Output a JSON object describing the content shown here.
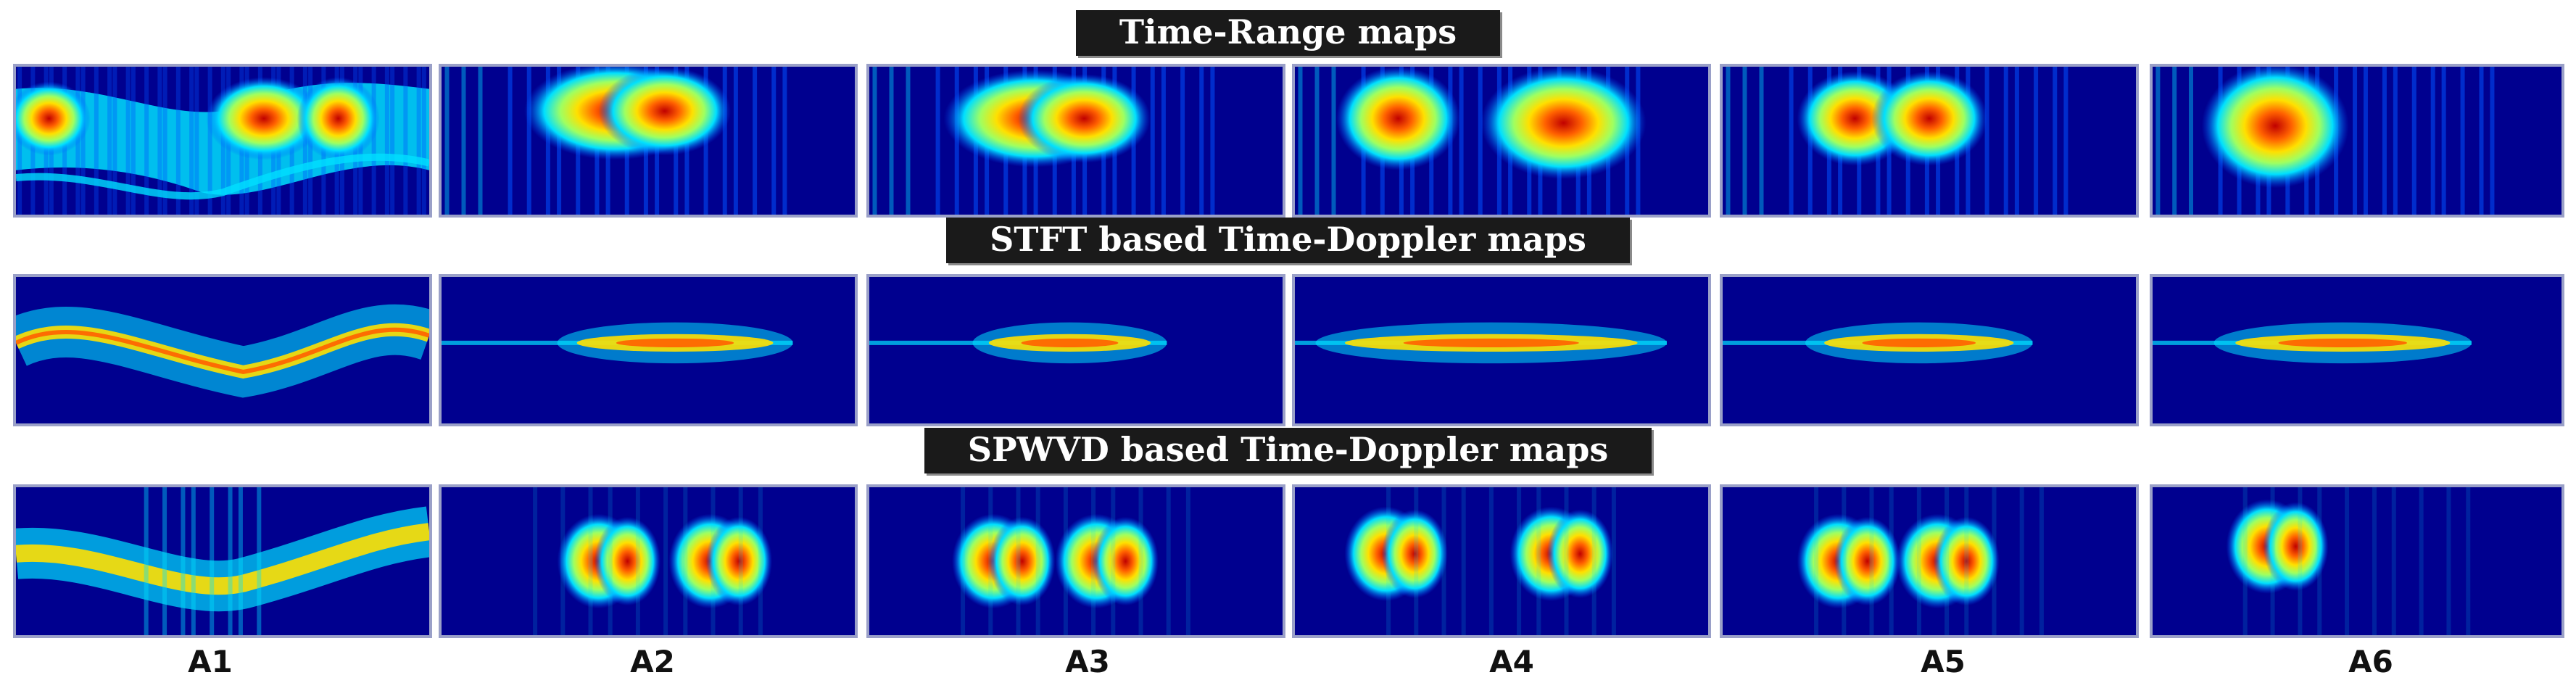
{
  "sections": [
    {
      "id": "time_range",
      "title": "Time-Range maps"
    },
    {
      "id": "stft",
      "title": "STFT based Time-Doppler maps"
    },
    {
      "id": "spwvd",
      "title": "SPWVD based Time-Doppler maps"
    }
  ],
  "activities": [
    "A1",
    "A2",
    "A3",
    "A4",
    "A5",
    "A6"
  ],
  "colormap": {
    "background": "#00008f",
    "low": "#0050ff",
    "mid_low": "#00e0ff",
    "mid": "#a0ff60",
    "mid_high": "#ffe000",
    "high": "#ff6000",
    "peak": "#c00000"
  }
}
